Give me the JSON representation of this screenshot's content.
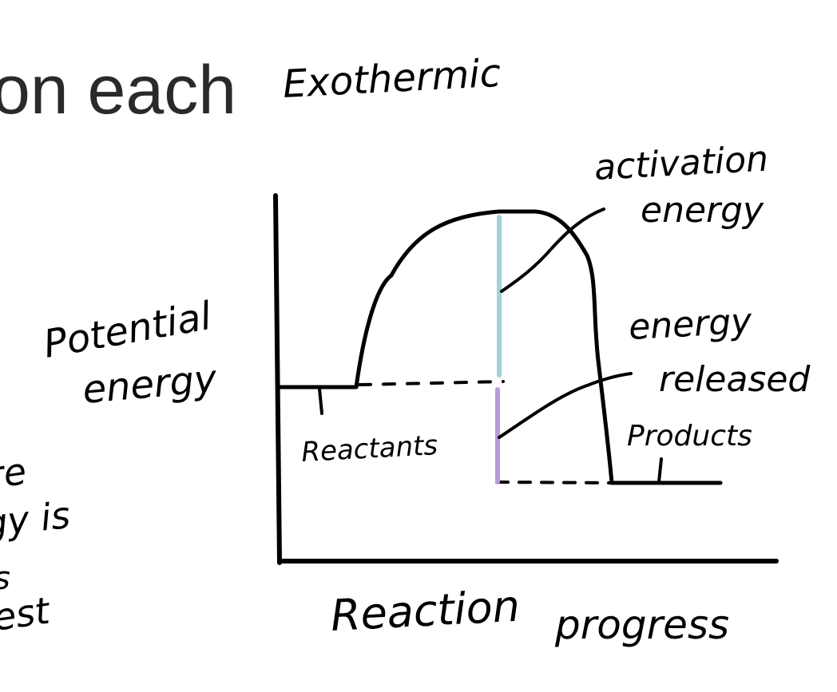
{
  "slide": {
    "heading_fragment": "on each",
    "left_fragments": [
      "re",
      "gy is",
      "s",
      "est"
    ]
  },
  "diagram": {
    "title": "Exothermic",
    "y_axis_label_line1": "Potential",
    "y_axis_label_line2": "energy",
    "x_axis_label_word1": "Reaction",
    "x_axis_label_word2": "progress",
    "reactants_label": "Reactants",
    "products_label": "Products",
    "activation_label_line1": "activation",
    "activation_label_line2": "energy",
    "released_label_line1": "energy",
    "released_label_line2": "released",
    "colors": {
      "ink": "#000000",
      "activation_energy_bar": "#9fd3da",
      "energy_released_bar": "#b69ad9"
    }
  }
}
